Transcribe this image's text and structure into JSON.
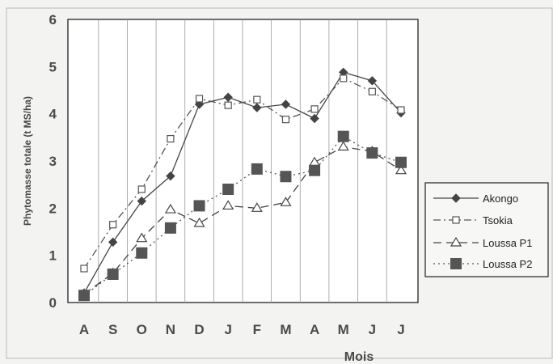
{
  "chart_data": {
    "type": "line",
    "categories": [
      "A",
      "S",
      "O",
      "N",
      "D",
      "J",
      "F",
      "M",
      "A",
      "M",
      "J",
      "J"
    ],
    "xlabel": "Mois",
    "ylabel": "Phytomasse totale (t MS/ha)",
    "ylim": [
      0,
      6
    ],
    "yticks": [
      "0",
      "1",
      "2",
      "3",
      "4",
      "5",
      "6"
    ],
    "grid": "vertical",
    "legend_position": "right",
    "series": [
      {
        "name": "Akongo",
        "marker": "diamond",
        "dash": "solid",
        "color": "#444444",
        "values": [
          0.2,
          1.28,
          2.15,
          2.68,
          4.2,
          4.35,
          4.13,
          4.2,
          3.9,
          4.88,
          4.7,
          4.02
        ]
      },
      {
        "name": "Tsokia",
        "marker": "open-square",
        "dash": "dash-dot",
        "color": "#555555",
        "values": [
          0.72,
          1.65,
          2.4,
          3.47,
          4.32,
          4.18,
          4.3,
          3.88,
          4.1,
          4.75,
          4.47,
          4.08
        ]
      },
      {
        "name": "Loussa P1",
        "marker": "open-triangle",
        "dash": "long-dash",
        "color": "#444444",
        "values": [
          0.18,
          0.62,
          1.36,
          1.97,
          1.68,
          2.05,
          2.0,
          2.12,
          2.97,
          3.3,
          3.2,
          2.8
        ]
      },
      {
        "name": "Loussa P2",
        "marker": "filled-square",
        "dash": "dotted",
        "color": "#555555",
        "values": [
          0.15,
          0.6,
          1.05,
          1.58,
          2.05,
          2.4,
          2.83,
          2.67,
          2.8,
          3.52,
          3.17,
          2.97
        ]
      }
    ]
  }
}
